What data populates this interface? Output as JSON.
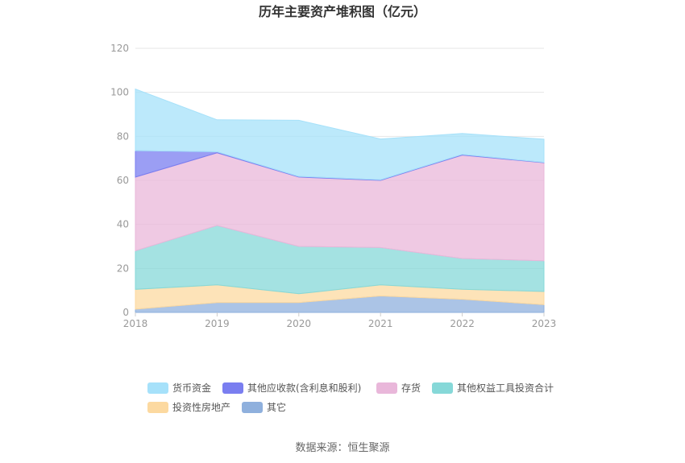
{
  "chart_data": {
    "type": "area",
    "stacked": true,
    "title": "历年主要资产堆积图（亿元）",
    "x": [
      "2018",
      "2019",
      "2020",
      "2021",
      "2022",
      "2023"
    ],
    "ylim": [
      0,
      120
    ],
    "yticks": [
      "0",
      "20",
      "40",
      "60",
      "80",
      "100",
      "120"
    ],
    "grid": true,
    "legend_position": "bottom",
    "series": [
      {
        "name": "其它",
        "color": "#8fb0dd",
        "values": [
          1.5,
          4.5,
          4.5,
          7.5,
          6,
          3.5
        ]
      },
      {
        "name": "投资性房地产",
        "color": "#fcd9a0",
        "values": [
          9,
          8,
          4,
          5,
          4.5,
          6
        ]
      },
      {
        "name": "其他权益工具投资合计",
        "color": "#86d8d8",
        "values": [
          17.5,
          27,
          21.5,
          17,
          14,
          14
        ]
      },
      {
        "name": "存货",
        "color": "#e9b7da",
        "values": [
          33.5,
          33,
          31.5,
          30.5,
          47,
          44.5
        ]
      },
      {
        "name": "其他应收款(含利息和股利)",
        "color": "#7a7ef0",
        "values": [
          12,
          0.5,
          0.3,
          0.3,
          0.3,
          0.2
        ]
      },
      {
        "name": "货币资金",
        "color": "#a6e1fa",
        "values": [
          28,
          14.5,
          25.5,
          18.5,
          9.5,
          10.5
        ]
      }
    ],
    "legend_order": [
      "货币资金",
      "其他应收款(含利息和股利)",
      "存货",
      "其他权益工具投资合计",
      "投资性房地产",
      "其它"
    ]
  },
  "footer": {
    "source": "数据来源：恒生聚源"
  }
}
